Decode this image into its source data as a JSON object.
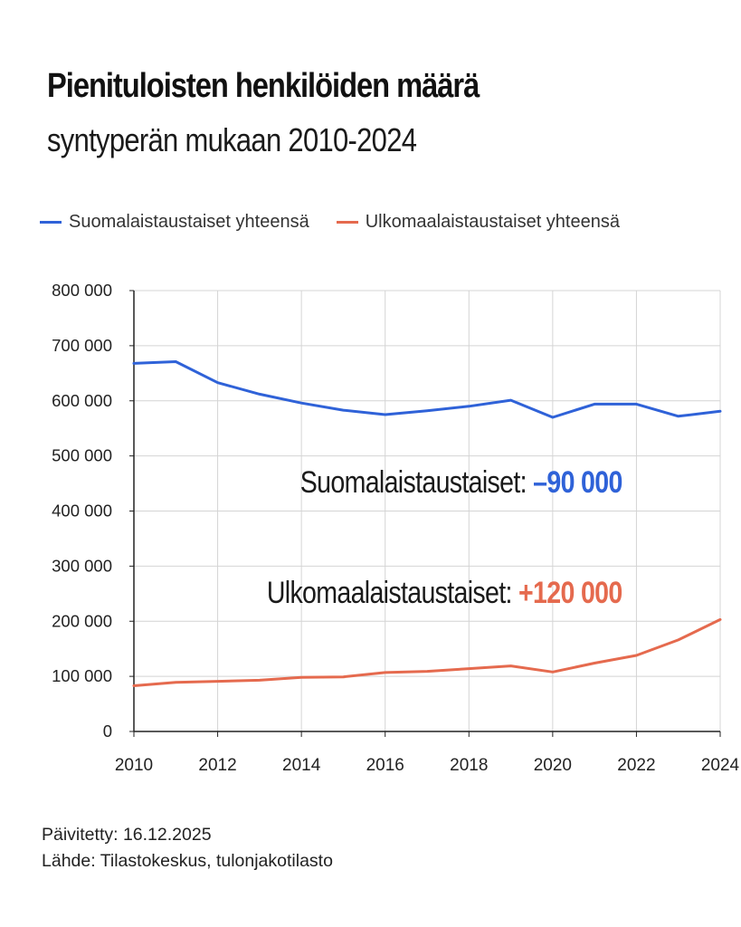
{
  "header": {
    "title": "Pienituloisten henkilöiden määrä",
    "subtitle": "syntyperän mukaan 2010-2024"
  },
  "annotations": {
    "finnish_label": "Suomalaistaustaiset:",
    "finnish_value": "–90 000",
    "foreign_label": "Ulkomaalaistaustaiset:",
    "foreign_value": "+120 000"
  },
  "footer": {
    "updated": "Päivitetty: 16.12.2025",
    "source": "Lähde: Tilastokeskus, tulonjakotilasto"
  },
  "colors": {
    "finnish": "#2f62d8",
    "foreign": "#e56a4e",
    "grid": "#d4d4d4",
    "axis": "#222222"
  },
  "chart_data": {
    "type": "line",
    "title": "Pienituloisten henkilöiden määrä",
    "subtitle": "syntyperän mukaan 2010-2024",
    "x": [
      2010,
      2011,
      2012,
      2013,
      2014,
      2015,
      2016,
      2017,
      2018,
      2019,
      2020,
      2021,
      2022,
      2023,
      2024
    ],
    "xticks": [
      "2010",
      "2012",
      "2014",
      "2016",
      "2018",
      "2020",
      "2022",
      "2024"
    ],
    "ylim": [
      0,
      800000
    ],
    "yticks": [
      "0",
      "100 000",
      "200 000",
      "300 000",
      "400 000",
      "500 000",
      "600 000",
      "700 000",
      "800 000"
    ],
    "grid": true,
    "legend_position": "top",
    "series": [
      {
        "name": "Suomalaistaustaiset yhteensä",
        "color": "#2f62d8",
        "values": [
          668000,
          671000,
          633000,
          612000,
          596000,
          583000,
          575000,
          582000,
          590000,
          601000,
          570000,
          594000,
          594000,
          572000,
          581000
        ]
      },
      {
        "name": "Ulkomaalaistaustaiset yhteensä",
        "color": "#e56a4e",
        "values": [
          83000,
          89000,
          91000,
          93000,
          98000,
          99000,
          107000,
          109000,
          114000,
          119000,
          108000,
          124000,
          138000,
          166000,
          203000
        ]
      }
    ]
  }
}
